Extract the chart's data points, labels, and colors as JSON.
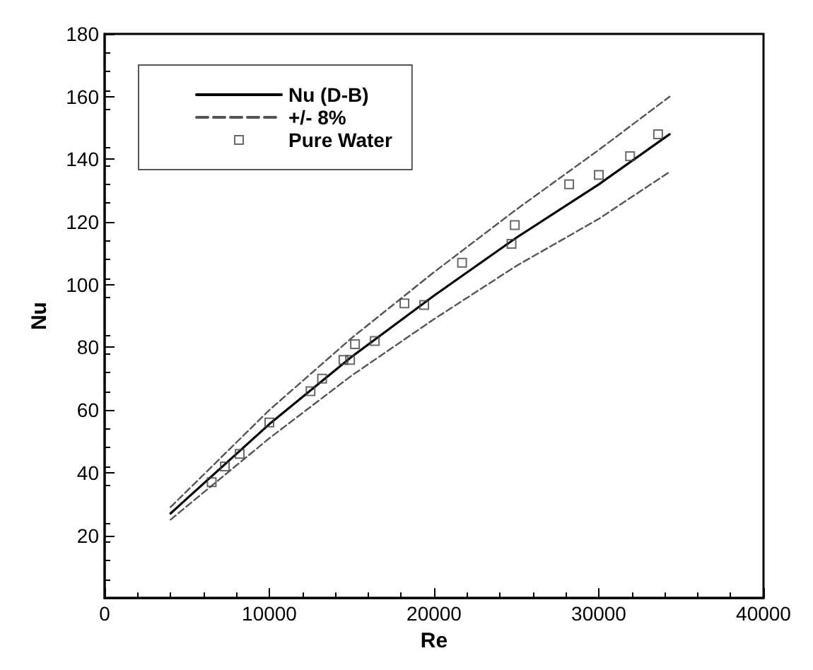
{
  "chart_data": {
    "type": "line",
    "xlabel": "Re",
    "ylabel": "Nu",
    "xlim": [
      0,
      40000
    ],
    "xticks": [
      0,
      10000,
      20000,
      30000,
      40000
    ],
    "ylim": [
      0,
      180
    ],
    "yticks": [
      20,
      40,
      60,
      80,
      100,
      120,
      140,
      160,
      180
    ],
    "grid": false,
    "legend": "top left",
    "series": [
      {
        "name": "Nu (D-B)",
        "color": "#000000",
        "line_style": "solid",
        "marker": "none",
        "x": [
          4000,
          10000,
          15000,
          20000,
          25000,
          30000,
          34300
        ],
        "values": [
          27,
          55.5,
          77,
          96.5,
          115,
          132,
          148
        ]
      },
      {
        "name": "+/- 8%",
        "color": "#555555",
        "line_style": "dashed",
        "marker": "none",
        "x": [
          4000,
          10000,
          15000,
          20000,
          25000,
          30000,
          34300
        ],
        "values": [
          29,
          60,
          83,
          104,
          124,
          143,
          160
        ]
      },
      {
        "name": null,
        "color": "#555555",
        "line_style": "dashed",
        "marker": "none",
        "x": [
          4000,
          10000,
          15000,
          20000,
          25000,
          30000,
          34300
        ],
        "values": [
          25,
          51,
          71,
          89,
          106,
          121,
          136
        ]
      },
      {
        "name": "Pure Water",
        "type": "scatter",
        "color": "#444444",
        "marker": "square",
        "x": [
          6500,
          7300,
          8200,
          10000,
          12500,
          13200,
          14500,
          14900,
          15200,
          16400,
          18200,
          19400,
          21700,
          24700,
          24900,
          28200,
          30000,
          31900,
          33600
        ],
        "values": [
          37,
          42,
          46,
          56,
          66,
          70,
          76,
          76,
          81,
          82,
          94,
          93.5,
          107,
          113,
          119,
          132,
          135,
          141,
          148
        ]
      }
    ]
  }
}
